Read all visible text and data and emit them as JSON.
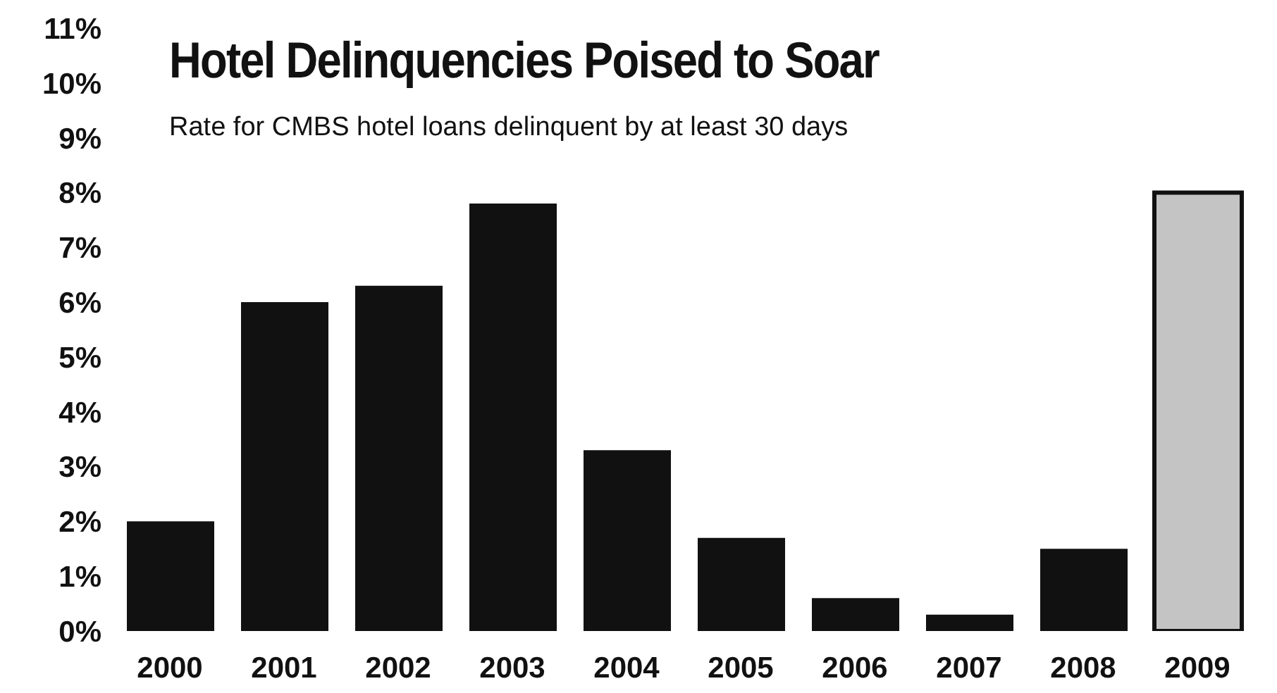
{
  "chart_data": {
    "type": "bar",
    "title": "Hotel Delinquencies Poised to Soar",
    "subtitle": "Rate for CMBS hotel loans delinquent by at least 30 days",
    "categories": [
      "2000",
      "2001",
      "2002",
      "2003",
      "2004",
      "2005",
      "2006",
      "2007",
      "2008",
      "2009"
    ],
    "values": [
      2.0,
      6.0,
      6.3,
      7.8,
      3.3,
      1.7,
      0.6,
      0.3,
      1.5,
      8.0
    ],
    "colors": [
      "#111111",
      "#111111",
      "#111111",
      "#111111",
      "#111111",
      "#111111",
      "#111111",
      "#111111",
      "#111111",
      "#c4c4c4"
    ],
    "ylim": [
      0,
      11
    ],
    "yticks": [
      {
        "value": 0,
        "label": "0%"
      },
      {
        "value": 1,
        "label": "1%"
      },
      {
        "value": 2,
        "label": "2%"
      },
      {
        "value": 3,
        "label": "3%"
      },
      {
        "value": 4,
        "label": "4%"
      },
      {
        "value": 5,
        "label": "5%"
      },
      {
        "value": 6,
        "label": "6%"
      },
      {
        "value": 7,
        "label": "7%"
      },
      {
        "value": 8,
        "label": "8%"
      },
      {
        "value": 9,
        "label": "9%"
      },
      {
        "value": 10,
        "label": "10%"
      },
      {
        "value": 11,
        "label": "11%"
      }
    ],
    "grid": false,
    "legend": false
  }
}
